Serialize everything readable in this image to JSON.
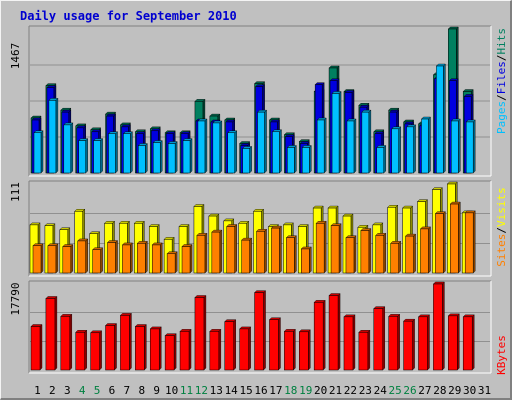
{
  "title": "Daily usage for September 2010",
  "colors": {
    "hits": "#008060",
    "files": "#0000e0",
    "pages": "#00c0ff",
    "visits": "#ffff00",
    "sites": "#ff8000",
    "kbytes": "#ff0000",
    "weekday_label": "#000000",
    "weekend_label": "#008040",
    "background": "#c0c0c0",
    "gridline": "#808080"
  },
  "panels": [
    {
      "max_label": "1467",
      "legend": [
        "Pages",
        "/",
        "Files",
        "/",
        "Hits"
      ]
    },
    {
      "max_label": "111",
      "legend": [
        "Sites",
        "/",
        "Visits"
      ]
    },
    {
      "max_label": "17790",
      "legend": [
        "KBytes"
      ]
    }
  ],
  "chart_data": [
    {
      "type": "bar",
      "title": "Daily usage for September 2010",
      "categories": [
        "1",
        "2",
        "3",
        "4",
        "5",
        "6",
        "7",
        "8",
        "9",
        "10",
        "11",
        "12",
        "13",
        "14",
        "15",
        "16",
        "17",
        "18",
        "19",
        "20",
        "21",
        "22",
        "23",
        "24",
        "25",
        "26",
        "27",
        "28",
        "29",
        "30",
        "31"
      ],
      "weekend_days": [
        "4",
        "5",
        "11",
        "12",
        "18",
        "19",
        "25",
        "26"
      ],
      "ylim": [
        0,
        1467
      ],
      "series": [
        {
          "name": "Hits",
          "values": [
            560,
            890,
            640,
            480,
            440,
            600,
            490,
            420,
            450,
            410,
            410,
            730,
            580,
            540,
            300,
            910,
            540,
            390,
            320,
            830,
            1070,
            830,
            690,
            420,
            640,
            520,
            500,
            1000,
            1467,
            830,
            0
          ]
        },
        {
          "name": "Files",
          "values": [
            540,
            870,
            620,
            460,
            420,
            580,
            470,
            400,
            430,
            400,
            400,
            530,
            520,
            520,
            280,
            880,
            520,
            370,
            300,
            900,
            940,
            820,
            670,
            400,
            620,
            500,
            480,
            960,
            940,
            780,
            0
          ]
        },
        {
          "name": "Pages",
          "values": [
            410,
            740,
            490,
            330,
            330,
            400,
            400,
            280,
            310,
            300,
            330,
            530,
            510,
            410,
            250,
            620,
            420,
            260,
            260,
            540,
            810,
            530,
            620,
            260,
            450,
            470,
            550,
            1090,
            530,
            520,
            0
          ]
        }
      ]
    },
    {
      "type": "bar",
      "categories": [
        "1",
        "2",
        "3",
        "4",
        "5",
        "6",
        "7",
        "8",
        "9",
        "10",
        "11",
        "12",
        "13",
        "14",
        "15",
        "16",
        "17",
        "18",
        "19",
        "20",
        "21",
        "22",
        "23",
        "24",
        "25",
        "26",
        "27",
        "28",
        "29",
        "30",
        "31"
      ],
      "ylim": [
        0,
        111
      ],
      "series": [
        {
          "name": "Visits",
          "values": [
            60,
            59,
            54,
            77,
            49,
            62,
            62,
            62,
            58,
            42,
            58,
            83,
            71,
            65,
            62,
            77,
            58,
            60,
            58,
            81,
            81,
            71,
            57,
            60,
            82,
            81,
            89,
            104,
            111,
            75,
            0
          ]
        },
        {
          "name": "Sites",
          "values": [
            34,
            34,
            33,
            40,
            29,
            38,
            35,
            37,
            35,
            24,
            33,
            47,
            51,
            58,
            41,
            52,
            56,
            44,
            30,
            62,
            59,
            44,
            53,
            47,
            37,
            46,
            55,
            74,
            86,
            75,
            0
          ]
        }
      ]
    },
    {
      "type": "bar",
      "categories": [
        "1",
        "2",
        "3",
        "4",
        "5",
        "6",
        "7",
        "8",
        "9",
        "10",
        "11",
        "12",
        "13",
        "14",
        "15",
        "16",
        "17",
        "18",
        "19",
        "20",
        "21",
        "22",
        "23",
        "24",
        "25",
        "26",
        "27",
        "28",
        "29",
        "30",
        "31"
      ],
      "ylim": [
        0,
        17790
      ],
      "series": [
        {
          "name": "KBytes",
          "values": [
            9000,
            14800,
            11100,
            7800,
            7700,
            9200,
            11300,
            9000,
            8500,
            7100,
            8000,
            15000,
            8000,
            10000,
            8500,
            16000,
            10400,
            8000,
            7900,
            14000,
            15400,
            11000,
            7800,
            12700,
            11100,
            10100,
            11000,
            17790,
            11200,
            11000,
            0
          ]
        }
      ]
    }
  ]
}
